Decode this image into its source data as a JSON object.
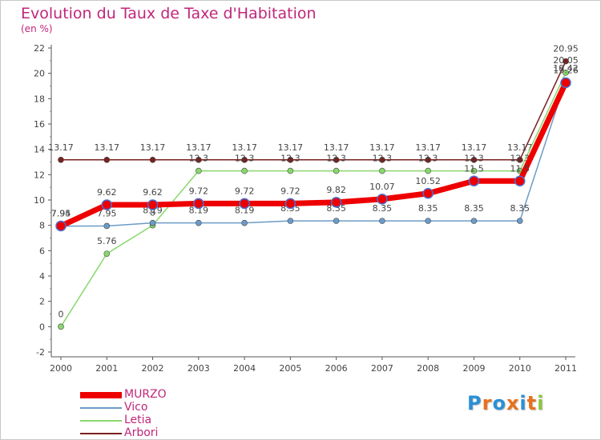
{
  "chart_data": {
    "type": "line",
    "title": "Evolution du Taux de Taxe d'Habitation",
    "subtitle": "(en %)",
    "xlabel": "",
    "ylabel": "",
    "categories": [
      "2000",
      "2001",
      "2002",
      "2003",
      "2004",
      "2005",
      "2006",
      "2007",
      "2008",
      "2009",
      "2010",
      "2011"
    ],
    "ylim": [
      -2,
      22
    ],
    "yticks": [
      -2,
      0,
      2,
      4,
      6,
      8,
      10,
      12,
      14,
      16,
      18,
      20,
      22
    ],
    "grid": false,
    "legend_position": "bottom-left",
    "series": [
      {
        "name": "Arbori",
        "color": "#7b1f1f",
        "values": [
          13.17,
          13.17,
          13.17,
          13.17,
          13.17,
          13.17,
          13.17,
          13.17,
          13.17,
          13.17,
          13.17,
          20.95
        ],
        "labels": [
          "13.17",
          "13.17",
          "13.17",
          "13.17",
          "13.17",
          "13.17",
          "13.17",
          "13.17",
          "13.17",
          "13.17",
          "13.17",
          "20.95"
        ]
      },
      {
        "name": "Letia",
        "color": "#88d86c",
        "values": [
          0,
          5.76,
          8,
          12.3,
          12.3,
          12.3,
          12.3,
          12.3,
          12.3,
          12.3,
          12.3,
          20.05
        ],
        "labels": [
          "0",
          "5.76",
          "8",
          "12.3",
          "12.3",
          "12.3",
          "12.3",
          "12.3",
          "12.3",
          "12.3",
          "12.3",
          "20.05"
        ]
      },
      {
        "name": "Vico",
        "color": "#6c9bc8",
        "values": [
          7.94,
          7.95,
          8.19,
          8.19,
          8.19,
          8.35,
          8.35,
          8.35,
          8.35,
          8.35,
          8.35,
          19.42
        ],
        "labels": [
          "7.94",
          "7.95",
          "8.19",
          "8.19",
          "8.19",
          "8.35",
          "8.35",
          "8.35",
          "8.35",
          "8.35",
          "8.35",
          "19.42"
        ]
      },
      {
        "name": "MURZO",
        "color": "#ee0000",
        "values": [
          7.95,
          9.62,
          9.62,
          9.72,
          9.72,
          9.72,
          9.82,
          10.07,
          10.52,
          11.5,
          11.5,
          19.26
        ],
        "labels": [
          "7.95",
          "9.62",
          "9.62",
          "9.72",
          "9.72",
          "9.72",
          "9.82",
          "10.07",
          "10.52",
          "11.5",
          "11.5",
          "19.26"
        ]
      }
    ]
  },
  "legend": {
    "items": [
      {
        "name": "MURZO",
        "color": "#ee0000"
      },
      {
        "name": "Vico",
        "color": "#6c9bc8"
      },
      {
        "name": "Letia",
        "color": "#88d86c"
      },
      {
        "name": "Arbori",
        "color": "#7b1f1f"
      }
    ]
  },
  "logo": {
    "letters": [
      "P",
      "r",
      "o",
      "x",
      "i",
      "t",
      "i"
    ],
    "colors": [
      "#2b8fd6",
      "#e9711c",
      "#2b8fd6",
      "#e9711c",
      "#2b8fd6",
      "#e9711c",
      "#8cc63f"
    ]
  }
}
